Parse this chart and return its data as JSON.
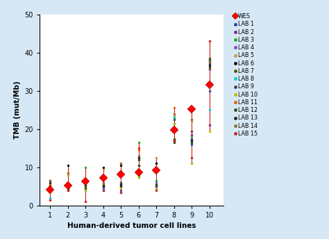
{
  "xlabel": "Human-derived tumor cell lines",
  "ylabel": "TMB (mut/Mb)",
  "xlim": [
    0.4,
    10.8
  ],
  "ylim": [
    0,
    50
  ],
  "yticks": [
    0,
    10,
    20,
    30,
    40,
    50
  ],
  "xticks": [
    1,
    2,
    3,
    4,
    5,
    6,
    7,
    8,
    9,
    10
  ],
  "background_color": "#d6e8f5",
  "plot_bg": "#ffffff",
  "wes_values": [
    4.2,
    5.2,
    6.3,
    7.2,
    8.2,
    8.7,
    9.3,
    19.8,
    25.2,
    31.5
  ],
  "lab_colors": {
    "LAB 1": "#2244aa",
    "LAB 2": "#882299",
    "LAB 3": "#22aa22",
    "LAB 4": "#8844cc",
    "LAB 5": "#cc9944",
    "LAB 6": "#111111",
    "LAB 7": "#555500",
    "LAB 8": "#00cccc",
    "LAB 9": "#444444",
    "LAB 10": "#bbbb00",
    "LAB 11": "#dd6600",
    "LAB 12": "#225511",
    "LAB 13": "#222222",
    "LAB 14": "#996633",
    "LAB 15": "#cc2222"
  },
  "lab_data": {
    "LAB 1": [
      3.8,
      5.0,
      4.5,
      3.9,
      5.0,
      7.5,
      4.8,
      16.5,
      16.0,
      30.0
    ],
    "LAB 2": [
      4.5,
      4.5,
      5.5,
      4.5,
      4.0,
      8.5,
      5.0,
      21.5,
      18.5,
      21.0
    ],
    "LAB 3": [
      5.0,
      5.5,
      10.0,
      5.5,
      6.0,
      16.5,
      6.5,
      23.0,
      18.0,
      38.0
    ],
    "LAB 4": [
      5.5,
      4.8,
      4.5,
      4.0,
      5.5,
      10.5,
      6.0,
      17.0,
      17.5,
      35.5
    ],
    "LAB 5": [
      6.0,
      8.0,
      5.0,
      9.5,
      10.5,
      12.0,
      12.5,
      23.5,
      22.0,
      37.5
    ],
    "LAB 6": [
      6.5,
      10.5,
      6.5,
      10.0,
      10.5,
      12.5,
      11.0,
      17.0,
      17.0,
      36.5
    ],
    "LAB 7": [
      4.8,
      4.0,
      4.5,
      5.5,
      5.5,
      8.0,
      5.5,
      16.5,
      16.5,
      36.0
    ],
    "LAB 8": [
      2.0,
      4.5,
      4.0,
      4.2,
      3.5,
      9.0,
      4.2,
      23.0,
      11.0,
      25.0
    ],
    "LAB 9": [
      5.5,
      5.5,
      5.5,
      5.0,
      6.0,
      12.0,
      5.5,
      22.5,
      19.5,
      38.0
    ],
    "LAB 10": [
      3.5,
      5.0,
      4.0,
      5.0,
      4.5,
      7.5,
      4.5,
      21.5,
      11.0,
      19.5
    ],
    "LAB 11": [
      5.5,
      8.5,
      6.5,
      6.0,
      9.0,
      14.5,
      11.0,
      25.5,
      22.5,
      37.5
    ],
    "LAB 12": [
      5.0,
      5.5,
      5.0,
      5.0,
      5.0,
      10.5,
      5.5,
      17.5,
      16.5,
      38.5
    ],
    "LAB 13": [
      6.0,
      4.5,
      6.0,
      5.0,
      5.5,
      12.5,
      11.0,
      17.0,
      17.0,
      37.0
    ],
    "LAB 14": [
      6.5,
      8.5,
      7.0,
      6.0,
      11.0,
      13.0,
      9.0,
      24.0,
      22.5,
      37.5
    ],
    "LAB 15": [
      1.5,
      4.0,
      1.0,
      4.0,
      3.5,
      15.0,
      4.0,
      17.0,
      12.5,
      43.0
    ]
  }
}
